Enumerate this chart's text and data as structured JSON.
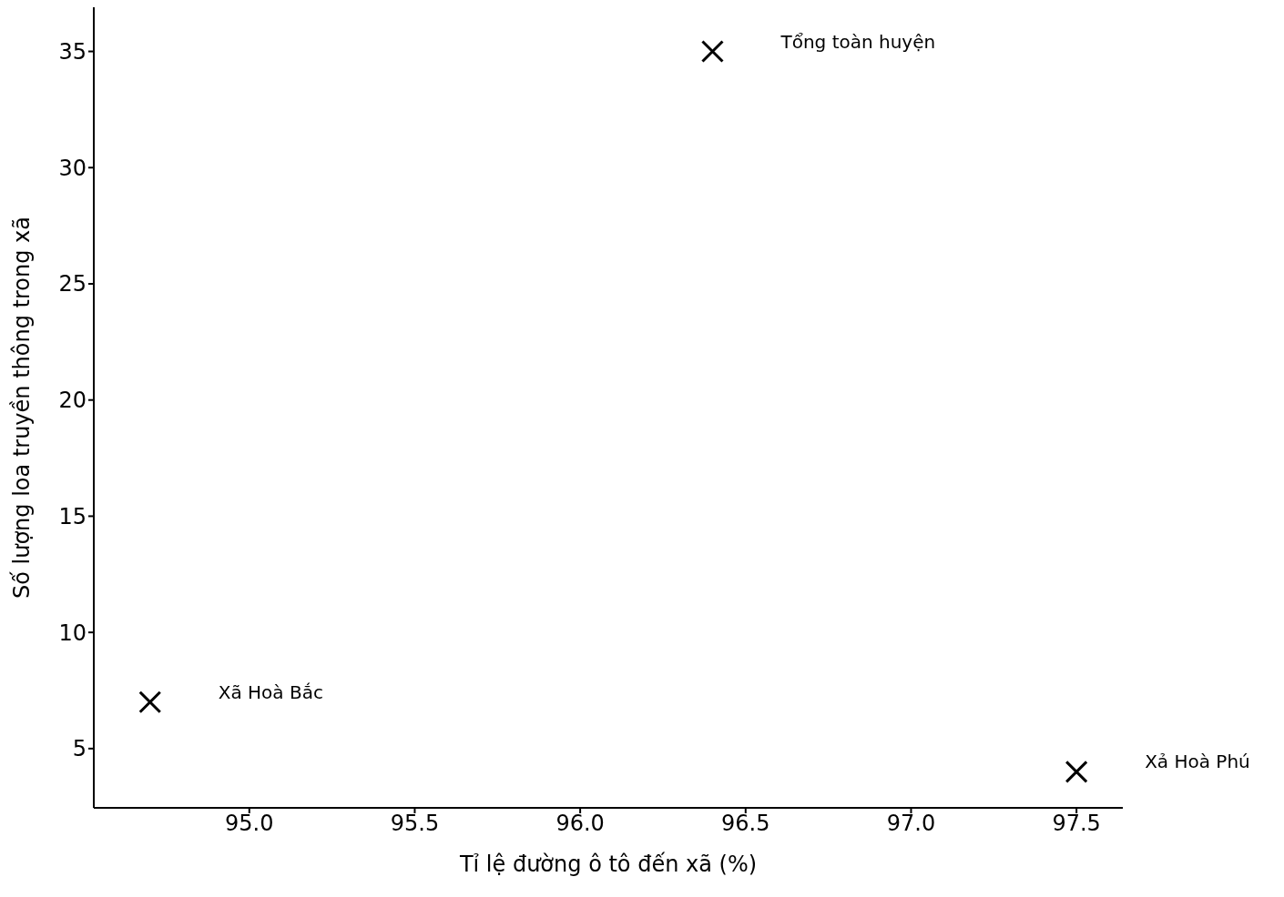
{
  "chart_data": {
    "type": "scatter",
    "xlabel": "Tỉ lệ đường ô tô đến xã (%)",
    "ylabel": "Số lượng loa truyền thông trong xã",
    "x": [
      94.7,
      96.4,
      97.5
    ],
    "series": [
      {
        "color": "#000000",
        "values": [
          7,
          35,
          4
        ]
      }
    ],
    "marker": "cross",
    "xlim": [
      94.53,
      97.64
    ],
    "xticks": [
      {
        "value": 95,
        "label": "95.0"
      },
      {
        "value": 95.5,
        "label": "95.5"
      },
      {
        "value": 96,
        "label": "96.0"
      },
      {
        "value": 96.5,
        "label": "96.5"
      },
      {
        "value": 97,
        "label": "97.0"
      },
      {
        "value": 97.5,
        "label": "97.5"
      }
    ],
    "ylim": [
      2.45,
      36.9
    ],
    "yticks": [
      5,
      10,
      15,
      20,
      25,
      30,
      35
    ],
    "grid": false,
    "legend": false,
    "annotations": [
      "Xã Hoà Bắc",
      "Tổng toàn huyện",
      "Xả Hoà Phú"
    ]
  }
}
